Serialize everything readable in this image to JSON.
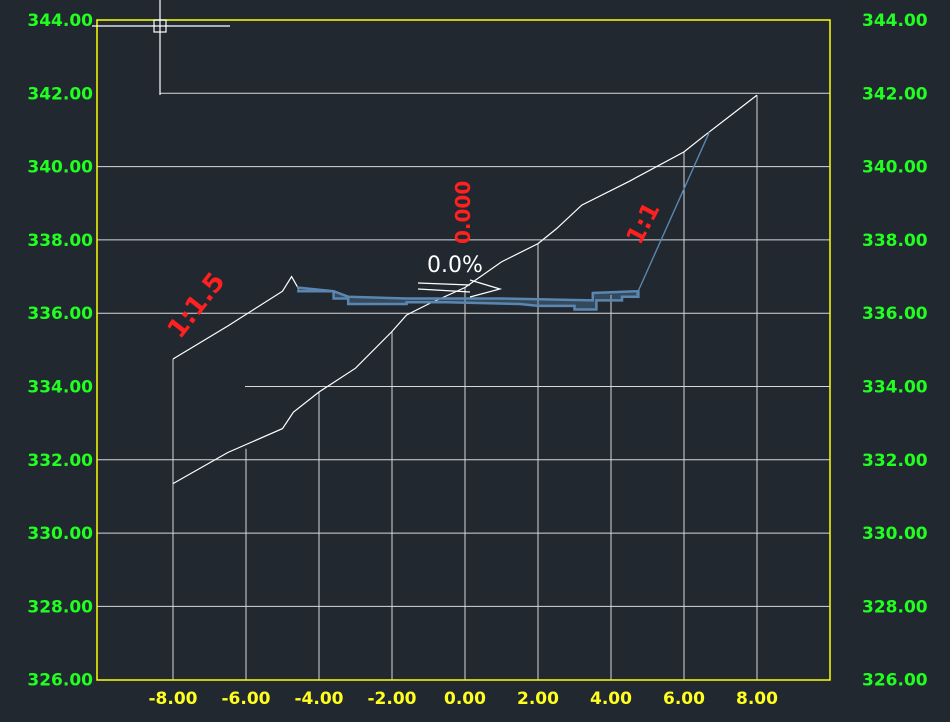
{
  "drawing": {
    "elevation_ticks": [
      "344.00",
      "342.00",
      "340.00",
      "338.00",
      "336.00",
      "334.00",
      "332.00",
      "330.00",
      "328.00",
      "326.00"
    ],
    "offset_ticks": [
      "-8.00",
      "-6.00",
      "-4.00",
      "-2.00",
      "0.00",
      "2.00",
      "4.00",
      "6.00",
      "8.00"
    ],
    "elevation_range": [
      326,
      344
    ],
    "offset_range": [
      -8,
      8
    ],
    "centerline_elevation_label": "0.000",
    "crossfall_label": "0.0%",
    "left_slope_label": "1:1.5",
    "right_slope_label": "1:1",
    "colors": {
      "background": "#212830",
      "frame": "#ffff00",
      "elevation_text": "#20ff20",
      "offset_text": "#ffff20",
      "slope_text": "#ff2020",
      "grid": "#d8d8d8",
      "design": "#5a86b0",
      "pavement": "#8a9ab0"
    },
    "ground_line": [
      [
        -8.0,
        331.35
      ],
      [
        -6.5,
        332.2
      ],
      [
        -5.0,
        332.85
      ],
      [
        -4.7,
        333.3
      ],
      [
        -4.0,
        333.85
      ],
      [
        -3.0,
        334.5
      ],
      [
        -2.0,
        335.5
      ],
      [
        -1.6,
        335.95
      ],
      [
        -1.0,
        336.25
      ],
      [
        0.0,
        336.7
      ],
      [
        1.0,
        337.4
      ],
      [
        2.0,
        337.9
      ],
      [
        2.5,
        338.3
      ],
      [
        3.2,
        338.95
      ],
      [
        4.5,
        339.6
      ],
      [
        6.0,
        340.4
      ],
      [
        6.5,
        340.8
      ],
      [
        8.0,
        341.95
      ]
    ],
    "left_fill_slope": [
      [
        -8.0,
        334.75
      ],
      [
        -6.5,
        335.65
      ],
      [
        -5.0,
        336.6
      ],
      [
        -4.75,
        337.0
      ],
      [
        -4.55,
        336.65
      ]
    ],
    "right_cut_slope": [
      [
        4.7,
        336.5
      ],
      [
        6.7,
        340.95
      ]
    ],
    "pavement": [
      [
        -4.6,
        336.6
      ],
      [
        -3.6,
        336.6
      ],
      [
        -3.6,
        336.4
      ],
      [
        -3.2,
        336.4
      ],
      [
        -3.2,
        336.25
      ],
      [
        -1.6,
        336.25
      ],
      [
        -1.6,
        336.3
      ],
      [
        -0.5,
        336.3
      ],
      [
        1.5,
        336.25
      ],
      [
        2.0,
        336.2
      ],
      [
        3.0,
        336.2
      ],
      [
        3.0,
        336.1
      ],
      [
        3.6,
        336.1
      ],
      [
        3.6,
        336.35
      ],
      [
        4.3,
        336.35
      ],
      [
        4.3,
        336.45
      ],
      [
        4.75,
        336.45
      ],
      [
        4.75,
        336.6
      ],
      [
        3.5,
        336.55
      ],
      [
        3.5,
        336.35
      ],
      [
        1.0,
        336.4
      ],
      [
        -1.6,
        336.4
      ],
      [
        -3.2,
        336.45
      ],
      [
        -3.6,
        336.6
      ],
      [
        -4.6,
        336.7
      ]
    ]
  }
}
